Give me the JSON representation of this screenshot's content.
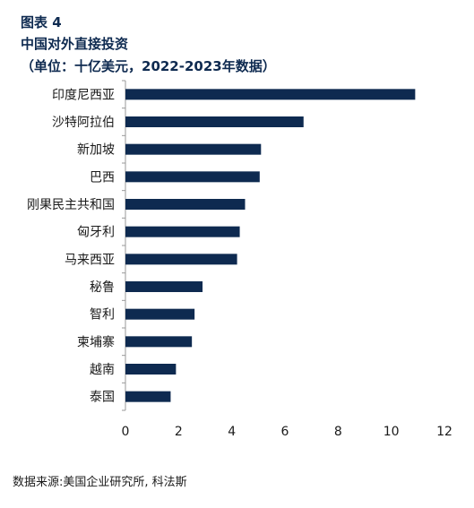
{
  "figure_label": "图表 4",
  "title": "中国对外直接投资",
  "subtitle": "（单位：十亿美元，2022-2023年数据）",
  "source": "数据来源:美国企业研究所, 科法斯",
  "colors": {
    "bar": "#0e2a50",
    "title": "#0e2a50",
    "axis": "#999999"
  },
  "chart_data": {
    "type": "bar",
    "orientation": "horizontal",
    "categories": [
      "印度尼西亚",
      "沙特阿拉伯",
      "新加坡",
      "巴西",
      "刚果民主共和国",
      "匈牙利",
      "马来西亚",
      "秘鲁",
      "智利",
      "柬埔寨",
      "越南",
      "泰国"
    ],
    "values": [
      10.9,
      6.7,
      5.1,
      5.05,
      4.5,
      4.3,
      4.2,
      2.9,
      2.6,
      2.5,
      1.9,
      1.7
    ],
    "xlim": [
      0,
      12
    ],
    "xticks": [
      "0",
      "2",
      "4",
      "6",
      "8",
      "10",
      "12"
    ],
    "grid": false,
    "legend": "none"
  }
}
